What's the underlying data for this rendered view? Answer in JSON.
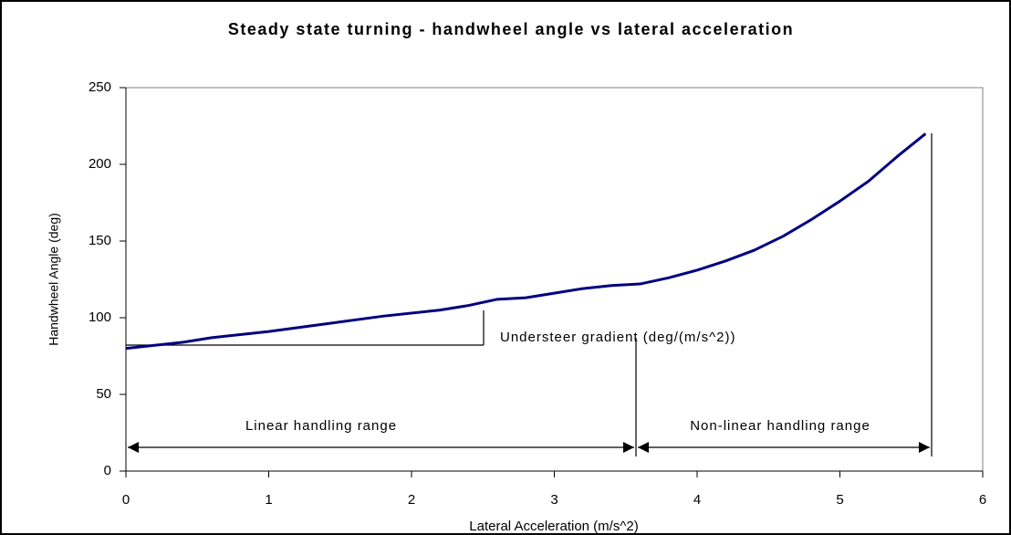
{
  "chart_data": {
    "type": "line",
    "title": "Steady state turning - handwheel angle vs lateral acceleration",
    "x_label": "Lateral Acceleration (m/s^2)",
    "y_label": "Handwheel Angle (deg)",
    "x": [
      0,
      0.2,
      0.4,
      0.6,
      1.0,
      1.4,
      1.8,
      2.2,
      2.4,
      2.6,
      2.8,
      3.0,
      3.2,
      3.4,
      3.6,
      3.8,
      4.0,
      4.2,
      4.4,
      4.6,
      4.8,
      5.0,
      5.2,
      5.4,
      5.6
    ],
    "series": [
      {
        "name": "Handwheel Angle",
        "color": "#000080",
        "values": [
          80,
          82,
          84,
          87,
          91,
          96,
          101,
          105,
          108,
          112,
          113,
          116,
          119,
          121,
          122,
          126,
          131,
          137,
          144,
          153,
          164,
          176,
          189,
          205,
          220
        ]
      }
    ],
    "xlim": [
      0,
      6
    ],
    "xticks": [
      0,
      1,
      2,
      3,
      4,
      5,
      6
    ],
    "ylim": [
      0,
      250
    ],
    "yticks": [
      0,
      50,
      100,
      150,
      200,
      250
    ],
    "grid": false,
    "annotations": [
      "Understeer gradient (deg/(m/s^2))",
      "Linear handling range",
      "Non-linear handling range"
    ]
  }
}
